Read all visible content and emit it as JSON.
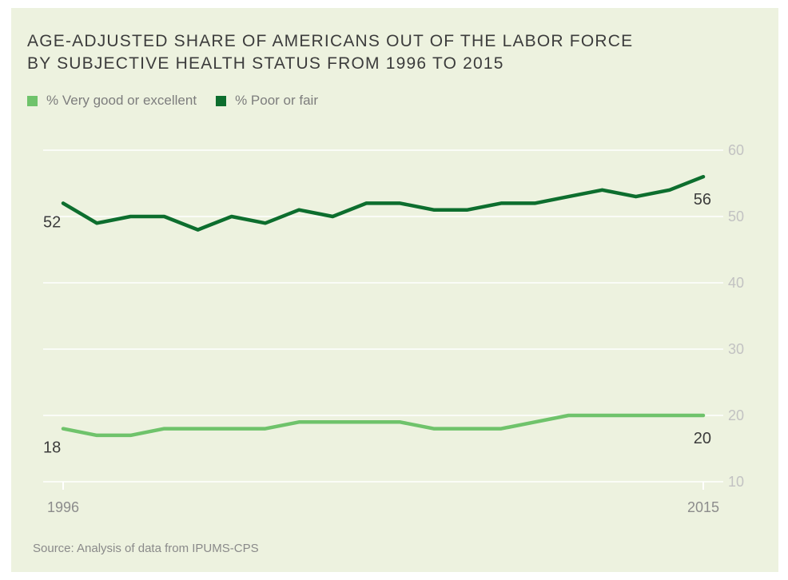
{
  "colors": {
    "panel_background": "#edf2df",
    "gridline": "#ffffff",
    "series_light_green": "#6fc36b",
    "series_dark_green": "#0d6e2e"
  },
  "source": "Source: Analysis of data from IPUMS-CPS",
  "chart_data": {
    "type": "line",
    "title_lines": [
      "AGE-ADJUSTED SHARE OF AMERICANS OUT OF THE LABOR FORCE",
      "BY SUBJECTIVE HEALTH STATUS FROM 1996 TO 2015"
    ],
    "title": "AGE-ADJUSTED SHARE OF AMERICANS OUT OF THE LABOR FORCE BY SUBJECTIVE HEALTH STATUS FROM 1996 TO 2015",
    "xlabel": "",
    "ylabel": "",
    "x": [
      1996,
      1997,
      1998,
      1999,
      2000,
      2001,
      2002,
      2003,
      2004,
      2005,
      2006,
      2007,
      2008,
      2009,
      2010,
      2011,
      2012,
      2013,
      2014,
      2015
    ],
    "xlim": [
      1996,
      2015
    ],
    "ylim": [
      10,
      60
    ],
    "y_ticks": [
      60,
      50,
      40,
      30,
      20,
      10
    ],
    "y_tick_labels": [
      "60",
      "50",
      "40",
      "30",
      "20",
      "10"
    ],
    "x_ticks": [
      1996,
      2015
    ],
    "x_tick_labels": [
      "1996",
      "2015"
    ],
    "grid": true,
    "y_axis_position": "right",
    "legend_position": "top-left",
    "legend": [
      "% Very good or excellent",
      "% Poor or fair"
    ],
    "series": [
      {
        "name": "% Very good or excellent",
        "color": "#6fc36b",
        "values": [
          18,
          17,
          17,
          18,
          18,
          18,
          18,
          19,
          19,
          19,
          19,
          18,
          18,
          18,
          19,
          20,
          20,
          20,
          20,
          20
        ],
        "start_label": "18",
        "end_label": "20"
      },
      {
        "name": "% Poor or fair",
        "color": "#0d6e2e",
        "values": [
          52,
          49,
          50,
          50,
          48,
          50,
          49,
          51,
          50,
          52,
          52,
          51,
          51,
          52,
          52,
          53,
          54,
          53,
          54,
          56
        ],
        "start_label": "52",
        "end_label": "56"
      }
    ]
  }
}
